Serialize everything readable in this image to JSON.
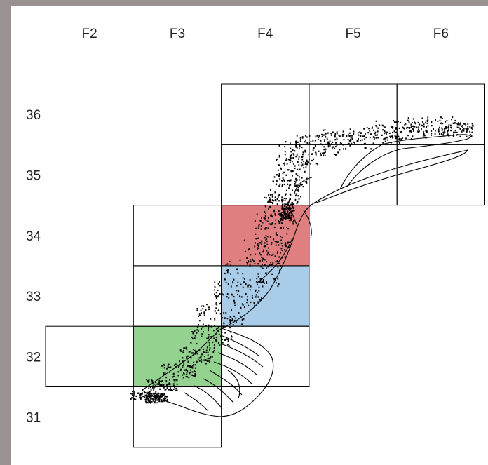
{
  "columns": [
    "F2",
    "F3",
    "F4",
    "F5",
    "F6"
  ],
  "rows": [
    "36",
    "35",
    "34",
    "33",
    "32",
    "31"
  ],
  "cells": [
    {
      "col": "F4",
      "row": "36"
    },
    {
      "col": "F5",
      "row": "36"
    },
    {
      "col": "F6",
      "row": "36"
    },
    {
      "col": "F4",
      "row": "35"
    },
    {
      "col": "F5",
      "row": "35"
    },
    {
      "col": "F6",
      "row": "35"
    },
    {
      "col": "F3",
      "row": "34"
    },
    {
      "col": "F4",
      "row": "34",
      "fill": "red"
    },
    {
      "col": "F3",
      "row": "33"
    },
    {
      "col": "F4",
      "row": "33",
      "fill": "blue"
    },
    {
      "col": "F2",
      "row": "32"
    },
    {
      "col": "F3",
      "row": "32",
      "fill": "green"
    },
    {
      "col": "F4",
      "row": "32"
    },
    {
      "col": "F3",
      "row": "31"
    }
  ],
  "colors": {
    "red": "#e07f7f",
    "blue": "#a9cde9",
    "green": "#93d38f",
    "grid_line": "#000000",
    "points": "#000000",
    "page_border": "#9a9290"
  }
}
